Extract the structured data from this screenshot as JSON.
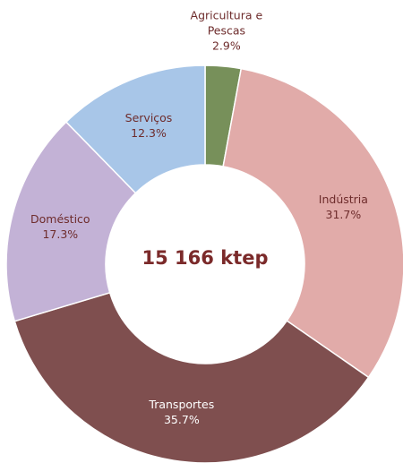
{
  "chart_data": {
    "type": "donut",
    "center_label": "15 166 ktep",
    "categories": [
      "Agricultura e Pescas",
      "Indústria",
      "Transportes",
      "Doméstico",
      "Serviços"
    ],
    "values": [
      2.9,
      31.7,
      35.7,
      17.3,
      12.3
    ],
    "value_labels": [
      "2.9%",
      "31.7%",
      "35.7%",
      "17.3%",
      "12.3%"
    ],
    "colors": [
      "#77905a",
      "#e1aba9",
      "#7f4f4f",
      "#c3b2d6",
      "#a8c6e8"
    ]
  }
}
